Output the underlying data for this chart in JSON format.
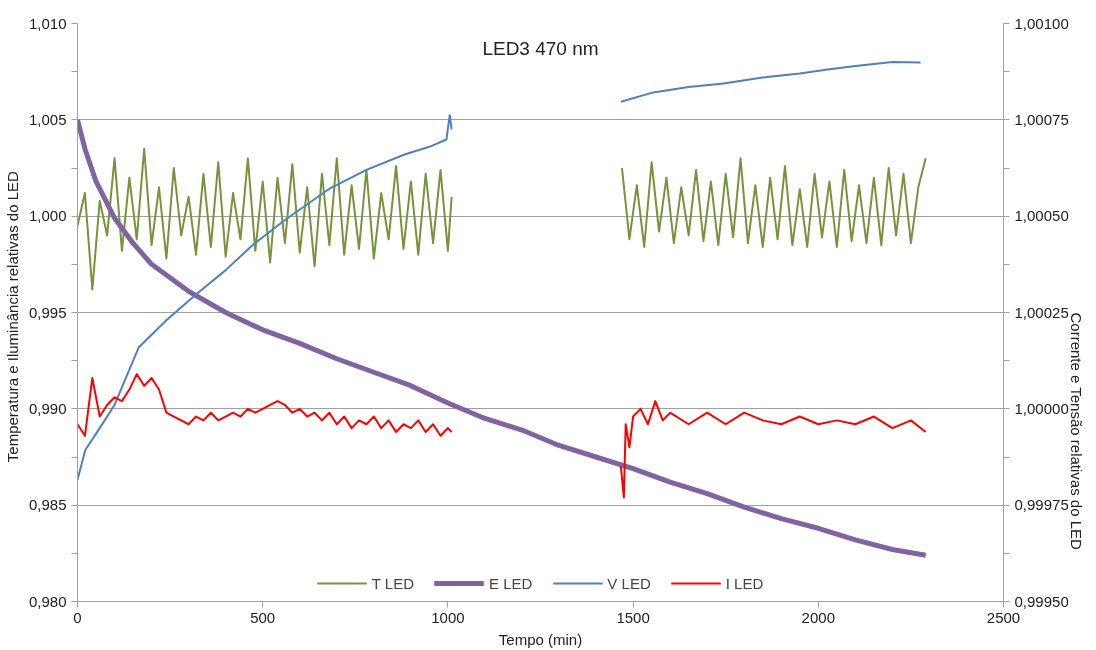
{
  "chart_data": {
    "type": "line",
    "title": "LED3 470 nm",
    "xlabel": "Tempo (min)",
    "ylabel": "Temperatura  e  Iluminância relativas do LED",
    "y2label": "Corrente  e Tensão relativas do LED",
    "xlim": [
      0,
      2500
    ],
    "xticks": [
      0,
      500,
      1000,
      1500,
      2000,
      2500
    ],
    "ylim": [
      0.98,
      1.01
    ],
    "yticks": [
      {
        "value": 0.98,
        "label": "0,980"
      },
      {
        "value": 0.9825,
        "label": null
      },
      {
        "value": 0.985,
        "label": "0,985"
      },
      {
        "value": 0.9875,
        "label": null
      },
      {
        "value": 0.99,
        "label": "0,990"
      },
      {
        "value": 0.9925,
        "label": null
      },
      {
        "value": 0.995,
        "label": "0,995"
      },
      {
        "value": 0.9975,
        "label": null
      },
      {
        "value": 1.0,
        "label": "1,000"
      },
      {
        "value": 1.0025,
        "label": null
      },
      {
        "value": 1.005,
        "label": "1,005"
      },
      {
        "value": 1.0075,
        "label": null
      },
      {
        "value": 1.01,
        "label": "1,010"
      }
    ],
    "y2lim": [
      0.9995,
      1.001
    ],
    "y2ticks": [
      {
        "value": 0.9995,
        "label": "0,99950"
      },
      {
        "value": 0.999625,
        "label": null
      },
      {
        "value": 0.99975,
        "label": "0,99975"
      },
      {
        "value": 0.999875,
        "label": null
      },
      {
        "value": 1.0,
        "label": "1,00000"
      },
      {
        "value": 1.000125,
        "label": null
      },
      {
        "value": 1.00025,
        "label": "1,00025"
      },
      {
        "value": 1.000375,
        "label": null
      },
      {
        "value": 1.0005,
        "label": "1,00050"
      },
      {
        "value": 1.000625,
        "label": null
      },
      {
        "value": 1.00075,
        "label": "1,00075"
      },
      {
        "value": 1.000875,
        "label": null
      },
      {
        "value": 1.001,
        "label": "1,00100"
      }
    ],
    "grid": "y",
    "legend": "bottom",
    "marker": "none",
    "line_style": "solid",
    "series": [
      {
        "name": "T LED",
        "color": "#77933c",
        "x": [
          0,
          20,
          40,
          60,
          80,
          100,
          120,
          140,
          160,
          180,
          200,
          220,
          240,
          260,
          280,
          300,
          320,
          340,
          360,
          380,
          400,
          420,
          440,
          460,
          480,
          500,
          520,
          540,
          560,
          580,
          600,
          620,
          640,
          660,
          680,
          700,
          720,
          740,
          760,
          780,
          800,
          820,
          840,
          860,
          880,
          900,
          920,
          940,
          960,
          980,
          1000,
          1010,
          1200,
          1470,
          1490,
          1510,
          1530,
          1550,
          1570,
          1590,
          1610,
          1630,
          1650,
          1670,
          1690,
          1710,
          1730,
          1750,
          1770,
          1790,
          1810,
          1830,
          1850,
          1870,
          1890,
          1910,
          1930,
          1950,
          1970,
          1990,
          2010,
          2030,
          2050,
          2070,
          2090,
          2110,
          2130,
          2150,
          2170,
          2190,
          2210,
          2230,
          2250,
          2270,
          2290
        ],
        "values": [
          0.9995,
          1.0012,
          0.9962,
          1.0008,
          0.999,
          1.003,
          0.9982,
          1.002,
          0.9988,
          1.0035,
          0.9985,
          1.0015,
          0.9978,
          1.0025,
          0.999,
          1.001,
          0.998,
          1.0022,
          0.9984,
          1.0028,
          0.9979,
          1.0012,
          0.9988,
          1.003,
          0.9982,
          1.0018,
          0.9976,
          1.002,
          0.9986,
          1.0027,
          0.9981,
          1.0015,
          0.9974,
          1.0022,
          0.9985,
          1.003,
          0.998,
          1.0016,
          0.9983,
          1.0024,
          0.9978,
          1.0012,
          0.9988,
          1.0026,
          0.9983,
          1.0018,
          0.998,
          1.0022,
          0.9986,
          1.0024,
          0.9982,
          1.001,
          null,
          1.0025,
          0.9988,
          1.0016,
          0.9984,
          1.0028,
          0.9992,
          1.002,
          0.9986,
          1.0015,
          0.999,
          1.0024,
          0.9987,
          1.0018,
          0.9985,
          1.0022,
          0.9989,
          1.003,
          0.9986,
          1.0016,
          0.9984,
          1.002,
          0.9988,
          1.0026,
          0.9985,
          1.0014,
          0.9984,
          1.0022,
          0.9989,
          1.0018,
          0.9984,
          1.0024,
          0.9987,
          1.0016,
          0.9986,
          1.002,
          0.9985,
          1.0025,
          0.999,
          1.0022,
          0.9986,
          1.0015,
          1.003
        ]
      },
      {
        "name": "E LED",
        "color": "#8064a2",
        "x": [
          0,
          20,
          50,
          100,
          150,
          200,
          300,
          400,
          500,
          600,
          700,
          800,
          900,
          1000,
          1100,
          1200,
          1300,
          1400,
          1500,
          1600,
          1700,
          1800,
          1900,
          2000,
          2100,
          2200,
          2290
        ],
        "values": [
          1.005,
          1.0035,
          1.0018,
          0.9999,
          0.9986,
          0.9975,
          0.9961,
          0.995,
          0.9941,
          0.9934,
          0.9926,
          0.9919,
          0.9912,
          0.9903,
          0.9895,
          0.9889,
          0.9881,
          0.9875,
          0.9869,
          0.9862,
          0.9856,
          0.9849,
          0.9843,
          0.9838,
          0.9832,
          0.9827,
          0.9824
        ]
      },
      {
        "name": "V LED",
        "color": "#4f81bd",
        "axis": "y2",
        "x": [
          0,
          21,
          60,
          100,
          165,
          240,
          319,
          400,
          473,
          560,
          678,
          780,
          883,
          950,
          996,
          1005,
          1010,
          1200,
          1467,
          1550,
          1650,
          1744,
          1850,
          1950,
          2020,
          2100,
          2200,
          2276
        ],
        "values": [
          0.999816,
          0.999893,
          0.99995,
          1.00001,
          1.000159,
          1.00023,
          1.000296,
          1.00036,
          1.000425,
          1.00049,
          1.00057,
          1.00062,
          1.00066,
          1.00068,
          1.000699,
          1.000762,
          1.000725,
          null,
          1.000797,
          1.00082,
          1.000835,
          1.000844,
          1.00086,
          1.00087,
          1.00088,
          1.00089,
          1.0009,
          1.000899
        ]
      },
      {
        "name": "I LED",
        "color": "#ff0000",
        "axis": "y2",
        "x": [
          0,
          20,
          40,
          60,
          80,
          100,
          120,
          140,
          160,
          180,
          200,
          220,
          240,
          260,
          280,
          300,
          320,
          340,
          360,
          380,
          400,
          420,
          440,
          460,
          480,
          500,
          520,
          540,
          560,
          580,
          600,
          620,
          640,
          660,
          680,
          700,
          720,
          740,
          760,
          780,
          800,
          820,
          840,
          860,
          880,
          900,
          920,
          940,
          960,
          980,
          1000,
          1010,
          1200,
          1467,
          1475,
          1480,
          1490,
          1500,
          1520,
          1540,
          1560,
          1580,
          1600,
          1650,
          1700,
          1750,
          1800,
          1850,
          1900,
          1950,
          2000,
          2050,
          2100,
          2150,
          2200,
          2250,
          2290
        ],
        "values": [
          0.99996,
          0.99993,
          1.00008,
          0.99998,
          1.00001,
          1.00003,
          1.00002,
          1.00005,
          1.00009,
          1.00006,
          1.00008,
          1.00005,
          0.99999,
          0.99998,
          0.99997,
          0.99996,
          0.99998,
          0.99997,
          0.99999,
          0.99997,
          0.99998,
          0.99999,
          0.99998,
          1.0,
          0.99999,
          1.0,
          1.00001,
          1.00002,
          1.00001,
          0.99999,
          1.0,
          0.99998,
          0.99999,
          0.99997,
          0.99999,
          0.99996,
          0.99998,
          0.99995,
          0.99997,
          0.99996,
          0.99998,
          0.99995,
          0.99997,
          0.99994,
          0.99996,
          0.99995,
          0.99997,
          0.99994,
          0.99996,
          0.99993,
          0.99995,
          0.99994,
          null,
          0.99985,
          0.99977,
          0.99996,
          0.9999,
          0.99998,
          1.0,
          0.99996,
          1.00002,
          0.99997,
          0.99999,
          0.99996,
          0.99999,
          0.99996,
          0.99999,
          0.99997,
          0.99996,
          0.99998,
          0.99996,
          0.99997,
          0.99996,
          0.99998,
          0.99995,
          0.99997,
          0.99994
        ]
      }
    ]
  }
}
